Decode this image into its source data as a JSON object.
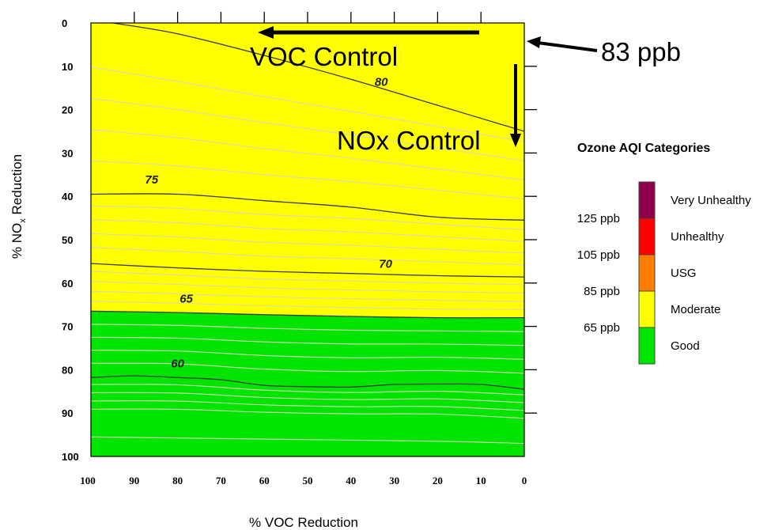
{
  "chart_data": {
    "type": "contour",
    "xlabel": "% VOC Reduction",
    "ylabel": "% NO",
    "ylabel_sub": "x",
    "ylabel_tail": " Reduction",
    "x_ticks": [
      100,
      90,
      80,
      70,
      60,
      50,
      40,
      30,
      20,
      10,
      0
    ],
    "y_ticks": [
      0,
      10,
      20,
      30,
      40,
      50,
      60,
      70,
      80,
      90,
      100
    ],
    "xlim": [
      100,
      0
    ],
    "ylim": [
      0,
      100
    ],
    "moderate_color": "#ffff00",
    "good_color": "#00e400",
    "boundary_65": [
      [
        100,
        66.5
      ],
      [
        80,
        66.8
      ],
      [
        60,
        67.3
      ],
      [
        40,
        67.7
      ],
      [
        20,
        68.0
      ],
      [
        0,
        68.0
      ]
    ],
    "contours": [
      {
        "level": "80",
        "points": [
          [
            95,
            0
          ],
          [
            80,
            2.5
          ],
          [
            60,
            7.5
          ],
          [
            40,
            13
          ],
          [
            20,
            19
          ],
          [
            0,
            25
          ]
        ],
        "label": {
          "x": 33,
          "y": 14.5
        }
      },
      {
        "level": "75",
        "points": [
          [
            100,
            39.5
          ],
          [
            80,
            39.5
          ],
          [
            60,
            41
          ],
          [
            40,
            42.5
          ],
          [
            20,
            44.8
          ],
          [
            0,
            45.5
          ]
        ],
        "label": {
          "x": 86,
          "y": 37
        }
      },
      {
        "level": "70",
        "points": [
          [
            100,
            55.5
          ],
          [
            80,
            56.5
          ],
          [
            60,
            57.3
          ],
          [
            40,
            57.8
          ],
          [
            20,
            58.3
          ],
          [
            0,
            58.6
          ]
        ],
        "label": {
          "x": 32,
          "y": 56.5
        }
      },
      {
        "level": "65",
        "points": [
          [
            100,
            66.5
          ],
          [
            80,
            66.8
          ],
          [
            60,
            67.3
          ],
          [
            40,
            67.7
          ],
          [
            20,
            68.0
          ],
          [
            0,
            68.0
          ]
        ],
        "label": {
          "x": 78,
          "y": 64.5
        }
      },
      {
        "level": "60",
        "points": [
          [
            100,
            81.8
          ],
          [
            90,
            81.4
          ],
          [
            80,
            81.8
          ],
          [
            70,
            82.3
          ],
          [
            60,
            83.6
          ],
          [
            50,
            83.9
          ],
          [
            40,
            84.0
          ],
          [
            30,
            83.4
          ],
          [
            20,
            83.3
          ],
          [
            10,
            83.4
          ],
          [
            0,
            84.5
          ]
        ],
        "label": {
          "x": 80,
          "y": 79.5
        }
      }
    ],
    "annotations": {
      "voc_control": "VOC Control",
      "nox_control": "NOx Control",
      "start_value": "83 ppb"
    },
    "legend": {
      "title": "Ozone AQI Categories",
      "categories": [
        {
          "name": "Very Unhealthy",
          "color": "#8f004c"
        },
        {
          "name": "Unhealthy",
          "color": "#ff0000"
        },
        {
          "name": "USG",
          "color": "#ff7e00"
        },
        {
          "name": "Moderate",
          "color": "#ffff00"
        },
        {
          "name": "Good",
          "color": "#00e400"
        }
      ],
      "thresholds": [
        "125 ppb",
        "105 ppb",
        "85 ppb",
        "65  ppb"
      ]
    }
  }
}
